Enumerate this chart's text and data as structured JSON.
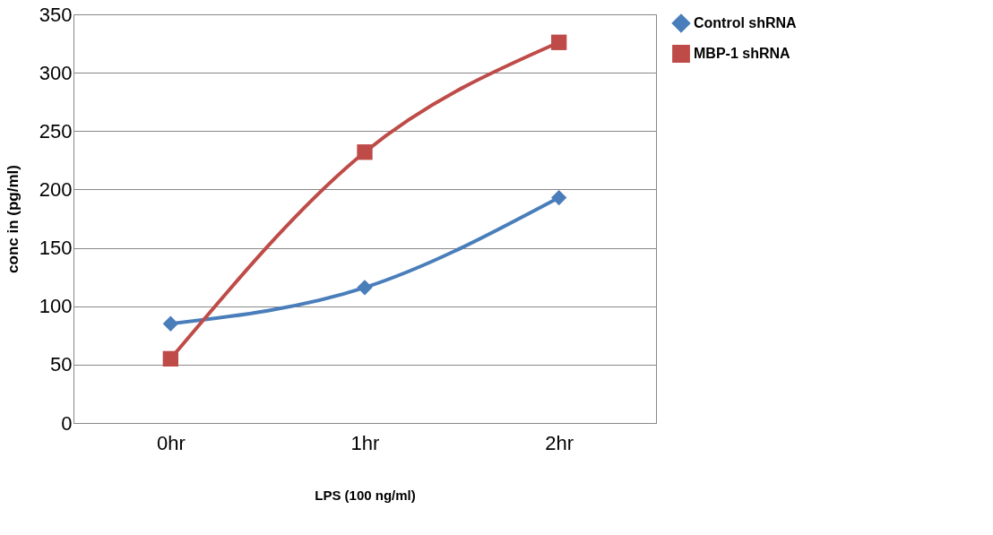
{
  "chart_data": {
    "type": "line",
    "xlabel": "LPS (100 ng/ml)",
    "ylabel": "conc in  (pg/ml)",
    "categories": [
      "0hr",
      "1hr",
      "2hr"
    ],
    "series": [
      {
        "name": "Control shRNA",
        "color": "#4a7ebb",
        "marker": "diamond",
        "values": [
          85,
          116,
          193
        ]
      },
      {
        "name": "MBP-1 shRNA",
        "color": "#be4b48",
        "marker": "square",
        "values": [
          55,
          232,
          326
        ]
      }
    ],
    "ylim": [
      0,
      350
    ],
    "yticks": [
      0,
      50,
      100,
      150,
      200,
      250,
      300,
      350
    ],
    "grid": "y",
    "legend": "right"
  }
}
